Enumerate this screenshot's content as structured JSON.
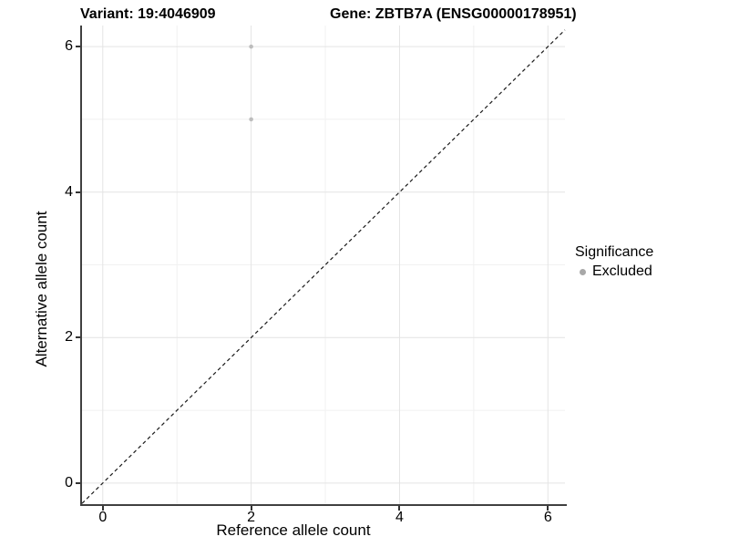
{
  "titles": {
    "left": "Variant: 19:4046909",
    "right": "Gene: ZBTB7A (ENSG00000178951)"
  },
  "chart_data": {
    "type": "scatter",
    "xlabel": "Reference allele count",
    "ylabel": "Alternative allele count",
    "xlim": [
      -0.28,
      6.23
    ],
    "ylim": [
      -0.29,
      6.29
    ],
    "xticks": [
      0,
      2,
      4,
      6
    ],
    "yticks": [
      0,
      2,
      4,
      6
    ],
    "xticks_minor": [
      1,
      3,
      5
    ],
    "yticks_minor": [
      1,
      3,
      5
    ],
    "grid": true,
    "points": [
      {
        "x": 2,
        "y": 6,
        "significance": "Excluded"
      },
      {
        "x": 2,
        "y": 5,
        "significance": "Excluded"
      }
    ],
    "reference_line": {
      "type": "identity",
      "slope": 1,
      "intercept": 0,
      "style": "dashed"
    },
    "legend": {
      "title": "Significance",
      "position": "right",
      "entries": [
        {
          "label": "Excluded",
          "color": "#a8a8a8"
        }
      ]
    },
    "colors": {
      "point": "#bdbdbd",
      "grid_major": "#e4e4e4",
      "grid_minor": "#f1f1f1",
      "axis_line": "#404040",
      "reference_line": "#1a1a1a",
      "background": "#ffffff",
      "text": "#000000"
    }
  }
}
